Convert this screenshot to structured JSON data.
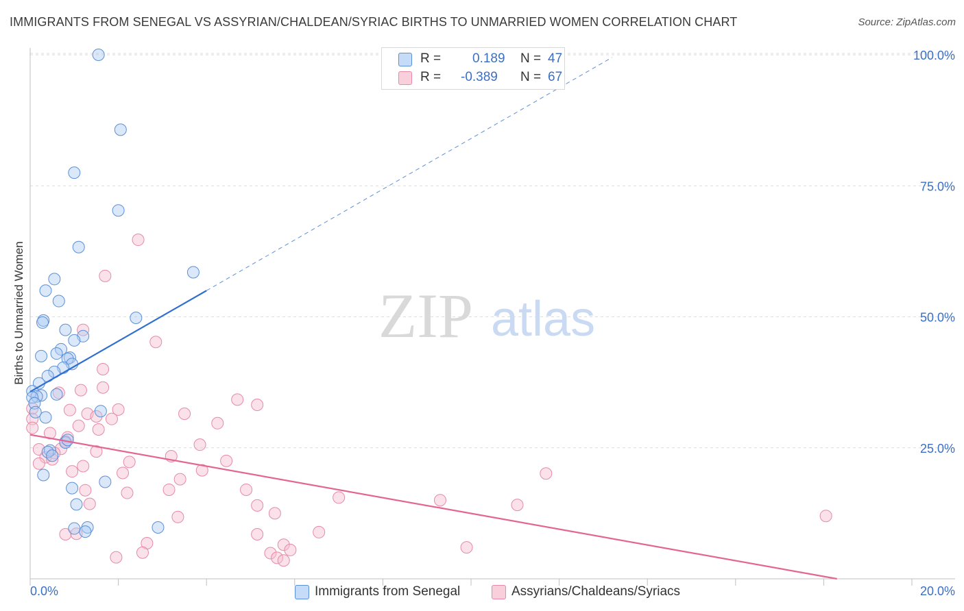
{
  "title": "IMMIGRANTS FROM SENEGAL VS ASSYRIAN/CHALDEAN/SYRIAC BIRTHS TO UNMARRIED WOMEN CORRELATION CHART",
  "source": "Source: ZipAtlas.com",
  "watermark": {
    "zip": "ZIP",
    "atlas": "atlas"
  },
  "legend": {
    "rows": [
      {
        "r_label": "R =",
        "r_value": "0.189",
        "n_label": "N =",
        "n_value": "47"
      },
      {
        "r_label": "R =",
        "r_value": "-0.389",
        "n_label": "N =",
        "n_value": "67"
      }
    ]
  },
  "colors": {
    "blue_fill": "#aecbf3",
    "blue_stroke": "#5b8fd6",
    "blue_line": "#2f6fd1",
    "pink_fill": "#f7bfd0",
    "pink_stroke": "#e58aa7",
    "pink_line": "#e36592",
    "grid": "#dcdcdc",
    "tick_label": "#3a6fc4"
  },
  "chart_data": {
    "type": "scatter",
    "title": "IMMIGRANTS FROM SENEGAL VS ASSYRIAN/CHALDEAN/SYRIAC BIRTHS TO UNMARRIED WOMEN CORRELATION CHART",
    "xlabel": "",
    "ylabel": "Births to Unmarried Women",
    "xlim": [
      0,
      20
    ],
    "ylim": [
      0,
      100
    ],
    "x_ticks": [
      "0.0%",
      "20.0%"
    ],
    "y_ticks": [
      "25.0%",
      "50.0%",
      "75.0%",
      "100.0%"
    ],
    "y_tick_values": [
      25,
      50,
      75,
      100
    ],
    "series": [
      {
        "name": "Immigrants from Senegal",
        "color": "blue",
        "R": 0.189,
        "N": 47,
        "trend": {
          "x0": 0,
          "y0": 35.7,
          "x1": 4.0,
          "y1": 55.0,
          "dashed_to_x": 13.2,
          "dashed_to_y": 99.5
        },
        "points": [
          [
            1.55,
            100.0
          ],
          [
            2.05,
            85.7
          ],
          [
            1.0,
            77.5
          ],
          [
            2.0,
            70.3
          ],
          [
            1.1,
            63.3
          ],
          [
            3.7,
            58.5
          ],
          [
            0.55,
            57.2
          ],
          [
            0.35,
            55.0
          ],
          [
            0.65,
            53.0
          ],
          [
            2.4,
            49.8
          ],
          [
            0.3,
            49.3
          ],
          [
            0.28,
            48.9
          ],
          [
            0.8,
            47.5
          ],
          [
            1.2,
            46.3
          ],
          [
            1.0,
            45.5
          ],
          [
            0.7,
            43.8
          ],
          [
            0.6,
            43.0
          ],
          [
            0.25,
            42.5
          ],
          [
            0.9,
            42.2
          ],
          [
            0.85,
            42.0
          ],
          [
            0.95,
            41.0
          ],
          [
            0.75,
            40.3
          ],
          [
            0.55,
            39.5
          ],
          [
            0.4,
            38.7
          ],
          [
            0.2,
            37.3
          ],
          [
            0.05,
            35.8
          ],
          [
            0.25,
            35.0
          ],
          [
            0.15,
            34.8
          ],
          [
            0.05,
            34.6
          ],
          [
            0.6,
            35.2
          ],
          [
            0.1,
            33.5
          ],
          [
            1.6,
            32.0
          ],
          [
            0.12,
            31.8
          ],
          [
            0.35,
            30.8
          ],
          [
            0.8,
            26.0
          ],
          [
            0.45,
            24.5
          ],
          [
            0.4,
            24.2
          ],
          [
            0.5,
            23.5
          ],
          [
            0.3,
            19.8
          ],
          [
            1.7,
            18.5
          ],
          [
            0.95,
            17.3
          ],
          [
            1.05,
            14.2
          ],
          [
            1.3,
            9.8
          ],
          [
            1.0,
            9.6
          ],
          [
            2.9,
            9.8
          ],
          [
            1.25,
            9.0
          ],
          [
            0.85,
            26.5
          ]
        ]
      },
      {
        "name": "Assyrians/Chaldeans/Syriacs",
        "color": "pink",
        "R": -0.389,
        "N": 67,
        "trend": {
          "x0": 0,
          "y0": 27.5,
          "x1": 18.3,
          "y1": 0.0
        },
        "points": [
          [
            2.45,
            64.7
          ],
          [
            1.7,
            57.8
          ],
          [
            1.2,
            47.5
          ],
          [
            2.85,
            45.2
          ],
          [
            1.65,
            40.0
          ],
          [
            1.65,
            36.5
          ],
          [
            1.15,
            36.0
          ],
          [
            0.65,
            35.5
          ],
          [
            4.7,
            34.2
          ],
          [
            5.15,
            33.2
          ],
          [
            0.05,
            32.5
          ],
          [
            0.9,
            32.2
          ],
          [
            2.0,
            32.3
          ],
          [
            1.3,
            31.5
          ],
          [
            3.5,
            31.5
          ],
          [
            0.05,
            30.5
          ],
          [
            1.5,
            31.0
          ],
          [
            1.85,
            30.5
          ],
          [
            4.25,
            29.7
          ],
          [
            1.1,
            29.2
          ],
          [
            1.55,
            28.5
          ],
          [
            0.05,
            28.8
          ],
          [
            0.45,
            27.8
          ],
          [
            0.85,
            27.0
          ],
          [
            3.85,
            25.6
          ],
          [
            0.8,
            26.2
          ],
          [
            0.2,
            24.7
          ],
          [
            0.7,
            24.8
          ],
          [
            0.55,
            24.0
          ],
          [
            1.5,
            24.3
          ],
          [
            0.35,
            23.2
          ],
          [
            0.5,
            22.8
          ],
          [
            3.2,
            23.4
          ],
          [
            2.25,
            22.3
          ],
          [
            4.45,
            22.5
          ],
          [
            0.2,
            22.0
          ],
          [
            1.2,
            21.5
          ],
          [
            0.95,
            20.5
          ],
          [
            2.1,
            20.2
          ],
          [
            3.9,
            20.7
          ],
          [
            11.7,
            20.1
          ],
          [
            3.4,
            19.0
          ],
          [
            1.25,
            16.9
          ],
          [
            2.2,
            16.4
          ],
          [
            3.15,
            17.0
          ],
          [
            4.9,
            17.0
          ],
          [
            7.0,
            15.5
          ],
          [
            9.3,
            15.0
          ],
          [
            1.35,
            14.3
          ],
          [
            5.15,
            14.0
          ],
          [
            11.05,
            14.1
          ],
          [
            5.55,
            12.5
          ],
          [
            3.35,
            11.8
          ],
          [
            18.05,
            12.0
          ],
          [
            5.15,
            8.5
          ],
          [
            6.55,
            8.9
          ],
          [
            0.8,
            8.5
          ],
          [
            1.05,
            8.6
          ],
          [
            2.65,
            6.8
          ],
          [
            5.75,
            6.5
          ],
          [
            9.9,
            6.0
          ],
          [
            2.55,
            5.0
          ],
          [
            5.45,
            4.9
          ],
          [
            5.6,
            4.0
          ],
          [
            5.75,
            3.5
          ],
          [
            1.95,
            4.1
          ],
          [
            5.9,
            5.5
          ]
        ]
      }
    ]
  },
  "bottom_legend": [
    {
      "label": "Immigrants from Senegal"
    },
    {
      "label": "Assyrians/Chaldeans/Syriacs"
    }
  ]
}
